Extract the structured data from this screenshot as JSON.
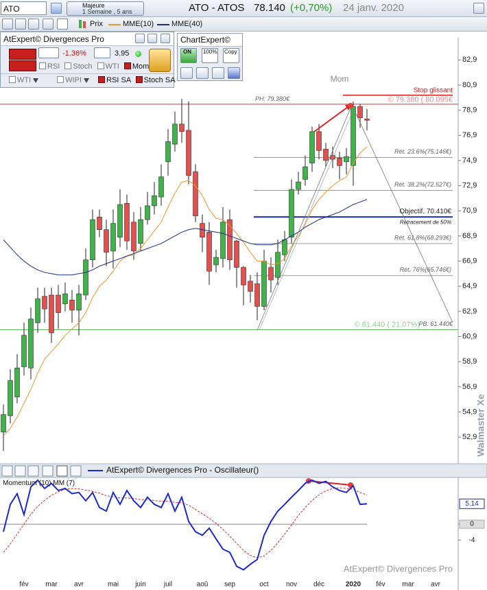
{
  "toolbar": {
    "symbol": "ATO",
    "period_title": "Majeure",
    "period": "1 Semaine , 5 ans",
    "instrument": "ATO - ATOS",
    "price": "78.140",
    "change": "(+0,70%)",
    "date": "24 janv. 2020"
  },
  "expert_panel": {
    "title": "AtExpert© Divergences Pro",
    "change": "-1.36%",
    "score": "3.95",
    "checks": [
      "RSI",
      "Stoch",
      "WTI",
      "Mom"
    ],
    "checks2": [
      "WTI",
      "WIPI",
      "RSI SA",
      "Stoch SA"
    ]
  },
  "chartexpert": {
    "title": "ChartExpert©",
    "buttons": [
      "ON",
      "100%",
      "Copy"
    ]
  },
  "chart_data": [
    {
      "type": "candlestick",
      "categories": [
        null,
        null,
        null,
        "fév",
        null,
        null,
        null,
        "mar",
        null,
        null,
        null,
        "avr",
        null,
        null,
        null,
        null,
        "mai",
        null,
        null,
        null,
        "juin",
        null,
        null,
        null,
        "juil",
        null,
        null,
        null,
        null,
        "aoû",
        null,
        null,
        null,
        "sep",
        null,
        null,
        null,
        null,
        "oct",
        null,
        null,
        null,
        "nov",
        null,
        null,
        null,
        "déc",
        null,
        null,
        null,
        null,
        "2020",
        null,
        null,
        null,
        "fév",
        null,
        null,
        null,
        "mar",
        null,
        null,
        null,
        "avr"
      ],
      "series": [
        {
          "name": "Prix",
          "up_color": "#3fb24a",
          "down_color": "#e2504f",
          "open": [
            53.3,
            54.6,
            56.1,
            58.5,
            58.4,
            62.0,
            64.1,
            64.2,
            64.2,
            63.5,
            63.8,
            63.0,
            64.2,
            67.0,
            70.4,
            69.4,
            67.7,
            68.8,
            71.5,
            70.0,
            68.3,
            70.2,
            71.3,
            72.0,
            74.8,
            76.2,
            77.8,
            77.3,
            74.0,
            69.9,
            69.2,
            66.6,
            67.1,
            70.2,
            68.5,
            66.4,
            65.3,
            65.1,
            63.3,
            66.4,
            65.6,
            67.4,
            68.8,
            72.6,
            73.4,
            74.7,
            77.2,
            75.8,
            75.3,
            75.1,
            74.8,
            74.5,
            79.2,
            78.2,
            null,
            null,
            null,
            null,
            null,
            null,
            null,
            null,
            null,
            null
          ],
          "high": [
            55.5,
            58.3,
            59.5,
            62.0,
            63.2,
            64.8,
            64.8,
            64.8,
            65.0,
            65.2,
            64.6,
            65.0,
            67.9,
            71.0,
            71.0,
            70.2,
            71.0,
            72.6,
            72.2,
            70.8,
            71.2,
            72.4,
            73.2,
            74.6,
            77.4,
            78.8,
            79.8,
            79.6,
            74.6,
            70.6,
            70.0,
            67.8,
            71.2,
            71.0,
            68.6,
            66.5,
            65.8,
            66.0,
            67.8,
            67.2,
            68.6,
            69.3,
            73.4,
            74.0,
            75.3,
            77.6,
            77.8,
            76.3,
            76.0,
            75.6,
            75.9,
            79.6,
            79.4,
            79.0,
            null,
            null,
            null,
            null,
            null,
            null,
            null,
            null,
            null,
            null
          ],
          "low": [
            51.8,
            54.0,
            55.6,
            57.8,
            57.5,
            61.2,
            62.0,
            60.4,
            61.5,
            62.9,
            62.0,
            61.0,
            63.8,
            66.4,
            68.8,
            66.5,
            66.3,
            68.0,
            67.8,
            67.0,
            67.7,
            69.8,
            70.6,
            71.3,
            73.7,
            75.6,
            76.3,
            73.0,
            70.0,
            67.6,
            65.0,
            66.0,
            66.4,
            66.2,
            64.8,
            63.4,
            63.6,
            62.2,
            63.0,
            64.4,
            65.0,
            66.9,
            68.3,
            72.2,
            72.9,
            74.0,
            75.0,
            74.4,
            74.3,
            73.4,
            73.8,
            72.9,
            77.5,
            77.3,
            null,
            null,
            null,
            null,
            null,
            null,
            null,
            null,
            null,
            null
          ],
          "close": [
            54.7,
            57.4,
            58.4,
            61.0,
            62.3,
            63.9,
            63.1,
            61.2,
            62.8,
            64.3,
            63.0,
            64.3,
            67.0,
            70.2,
            69.4,
            67.6,
            69.9,
            71.4,
            68.5,
            67.7,
            70.2,
            71.3,
            72.1,
            73.6,
            76.4,
            77.8,
            77.2,
            73.7,
            70.5,
            68.8,
            66.1,
            67.2,
            70.0,
            67.0,
            66.4,
            65.0,
            64.5,
            63.3,
            66.9,
            65.4,
            67.6,
            68.6,
            72.6,
            73.2,
            74.4,
            77.2,
            75.7,
            74.9,
            75.0,
            74.5,
            75.2,
            79.2,
            78.3,
            78.1,
            null,
            null,
            null,
            null,
            null,
            null,
            null,
            null,
            null,
            null
          ]
        },
        {
          "name": "MME(10)",
          "color": "#f0962a",
          "values": [
            53.0,
            53.6,
            54.5,
            55.6,
            56.7,
            58.0,
            59.1,
            59.7,
            60.3,
            61.0,
            61.5,
            62.0,
            62.8,
            64.0,
            64.9,
            65.4,
            66.1,
            66.9,
            67.3,
            67.4,
            67.9,
            68.6,
            69.3,
            70.0,
            71.2,
            72.3,
            73.2,
            73.3,
            72.9,
            72.1,
            71.0,
            70.3,
            70.2,
            69.7,
            69.1,
            68.4,
            67.6,
            66.9,
            66.9,
            66.6,
            66.7,
            67.1,
            68.1,
            68.9,
            69.8,
            71.0,
            71.8,
            72.4,
            72.9,
            73.3,
            73.6,
            74.7,
            75.5,
            76.0,
            null,
            null,
            null,
            null,
            null,
            null,
            null,
            null,
            null,
            null
          ]
        },
        {
          "name": "MME(40)",
          "color": "#1c2a8c",
          "values": [
            68.6,
            68.0,
            67.4,
            66.9,
            66.5,
            66.2,
            66.0,
            65.9,
            65.8,
            65.8,
            65.8,
            65.9,
            66.0,
            66.2,
            66.5,
            66.7,
            66.9,
            67.1,
            67.3,
            67.5,
            67.7,
            67.9,
            68.1,
            68.3,
            68.6,
            68.9,
            69.2,
            69.4,
            69.5,
            69.4,
            69.3,
            69.2,
            69.1,
            68.9,
            68.7,
            68.5,
            68.3,
            68.2,
            68.2,
            68.2,
            68.3,
            68.6,
            68.9,
            69.2,
            69.6,
            69.9,
            70.2,
            70.4,
            70.6,
            70.8,
            71.1,
            71.4,
            71.6,
            71.8,
            null,
            null,
            null,
            null,
            null,
            null,
            null,
            null,
            null,
            null
          ]
        }
      ],
      "ylim": [
        51,
        84.5
      ],
      "yticks": [
        {
          "value": 82.9,
          "label": "82,9"
        },
        {
          "value": 80.9,
          "label": "80,9"
        },
        {
          "value": 78.9,
          "label": "78,9"
        },
        {
          "value": 76.9,
          "label": "76,9"
        },
        {
          "value": 74.9,
          "label": "74,9"
        },
        {
          "value": 72.9,
          "label": "72,9"
        },
        {
          "value": 70.9,
          "label": "70,9"
        },
        {
          "value": 68.9,
          "label": "68,9"
        },
        {
          "value": 66.9,
          "label": "66,9"
        },
        {
          "value": 64.9,
          "label": "64,9"
        },
        {
          "value": 62.9,
          "label": "62,9"
        },
        {
          "value": 60.9,
          "label": "60,9"
        },
        {
          "value": 58.9,
          "label": "58,9"
        },
        {
          "value": 56.9,
          "label": "56,9"
        },
        {
          "value": 54.9,
          "label": "54,9"
        },
        {
          "value": 52.9,
          "label": "52,9"
        }
      ],
      "indicator_label": "Mom",
      "stop": {
        "value": 80.095,
        "label": "Stop glissant",
        "price_label": "© 79.380 ( 80.095€"
      },
      "ph": {
        "value": 79.38,
        "label": "PH: 79.380€"
      },
      "pb": {
        "value": 61.44,
        "label": "PB: 61.440€",
        "price_label": "© 61.440 ( 21.07%)"
      },
      "target": {
        "value": 70.41,
        "label": "Objectif. 70.410€",
        "note": "Retracement de 50%"
      },
      "retracements": [
        {
          "value": 75.146,
          "label": "Rét. 23.6%(75.146€)"
        },
        {
          "value": 72.527,
          "label": "Rét. 38.2%(72.527€)"
        },
        {
          "value": 68.293,
          "label": "Rét. 61.8%(68.293€)"
        },
        {
          "value": 65.746,
          "label": "Rét. 76%(65.746€)"
        }
      ],
      "watermark": "Walmaster Xe"
    },
    {
      "type": "line",
      "title": "AtExpert© Divergences Pro - Oscillateur()",
      "series": [
        {
          "name": "Momentum (10)",
          "color": "#1a2ad0",
          "values": [
            -1.9,
            5.0,
            7.7,
            2.4,
            9.4,
            11.1,
            9.0,
            10.3,
            8.5,
            9.0,
            7.7,
            8.0,
            5.9,
            8.0,
            4.2,
            3.3,
            8.0,
            5.0,
            8.5,
            5.9,
            4.2,
            6.8,
            5.0,
            4.2,
            7.7,
            3.3,
            6.8,
            0.7,
            -1.9,
            -2.8,
            -1.0,
            -3.7,
            -6.3,
            -7.1,
            -10.6,
            -11.5,
            -10.1,
            -8.9,
            -2.8,
            0.7,
            3.3,
            5.0,
            6.8,
            8.5,
            10.3,
            11.1,
            10.3,
            10.8,
            9.4,
            8.5,
            8.0,
            9.7,
            5.0,
            5.14,
            null,
            null,
            null,
            null,
            null,
            null,
            null,
            null,
            null,
            null
          ]
        },
        {
          "name": "MM (7)",
          "color": "#d42a2a",
          "values": [
            -7.1,
            -5.0,
            -2.5,
            0,
            2.5,
            4.5,
            6.0,
            7.3,
            8.2,
            8.8,
            9.0,
            8.9,
            8.6,
            8.3,
            7.8,
            7.2,
            6.9,
            6.6,
            6.6,
            6.5,
            6.2,
            6.2,
            6.0,
            5.8,
            5.8,
            5.5,
            5.4,
            4.8,
            3.7,
            2.6,
            1.5,
            0.2,
            -1.3,
            -3.0,
            -4.8,
            -6.6,
            -7.9,
            -8.5,
            -8.0,
            -6.6,
            -4.7,
            -2.5,
            -0.2,
            2.2,
            4.2,
            6.0,
            7.4,
            8.4,
            9.0,
            9.2,
            9.0,
            8.8,
            8.0,
            7.4,
            null,
            null,
            null,
            null,
            null,
            null,
            null,
            null,
            null,
            null
          ]
        }
      ],
      "ylim": [
        -14,
        11.6
      ],
      "yticks": [
        0,
        -4
      ],
      "watermark": "AtExpert© Divergences Pro"
    }
  ]
}
